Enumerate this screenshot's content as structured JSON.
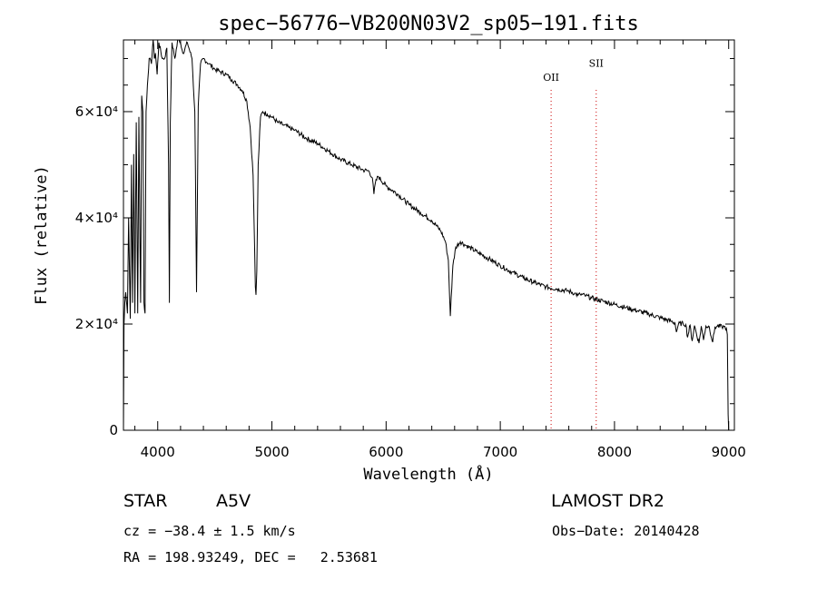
{
  "chart_data": {
    "type": "line",
    "title": "spec−56776−VB200N03V2_sp05−191.fits",
    "xlabel": "Wavelength (Å)",
    "ylabel": "Flux (relative)",
    "xlim": [
      3700,
      9050
    ],
    "ylim": [
      0,
      73500
    ],
    "x_ticks": [
      4000,
      5000,
      6000,
      7000,
      8000,
      9000
    ],
    "y_ticks": [
      {
        "value": 0,
        "label": "0"
      },
      {
        "value": 20000,
        "label": "2×10⁴"
      },
      {
        "value": 40000,
        "label": "4×10⁴"
      },
      {
        "value": 60000,
        "label": "6×10⁴"
      }
    ],
    "series": [
      {
        "x": [
          3700,
          3705,
          3712,
          3720,
          3735,
          3745,
          3760,
          3770,
          3780,
          3790,
          3800,
          3812,
          3825,
          3835,
          3850,
          3860,
          3870,
          3880,
          3889,
          3898,
          3910,
          3925,
          3945,
          3960,
          3970,
          3980,
          3995,
          4010,
          4040,
          4060,
          4080,
          4095,
          4102,
          4110,
          4125,
          4150,
          4180,
          4200,
          4220,
          4260,
          4300,
          4325,
          4340,
          4355,
          4375,
          4400,
          4450,
          4500,
          4550,
          4600,
          4650,
          4700,
          4740,
          4780,
          4810,
          4835,
          4848,
          4855,
          4861,
          4868,
          4880,
          4900,
          4920,
          4960,
          5000,
          5050,
          5100,
          5150,
          5200,
          5300,
          5400,
          5500,
          5600,
          5700,
          5800,
          5850,
          5880,
          5893,
          5905,
          5930,
          6000,
          6100,
          6200,
          6300,
          6400,
          6480,
          6520,
          6545,
          6556,
          6563,
          6570,
          6585,
          6610,
          6650,
          6700,
          6800,
          6900,
          7000,
          7100,
          7200,
          7300,
          7400,
          7500,
          7600,
          7650,
          7680,
          7700,
          7750,
          7800,
          7900,
          8000,
          8100,
          8200,
          8300,
          8400,
          8500,
          8530,
          8542,
          8560,
          8600,
          8625,
          8640,
          8662,
          8680,
          8700,
          8740,
          8760,
          8780,
          8800,
          8830,
          8860,
          8880,
          8900,
          8940,
          8960,
          8980,
          8988,
          8995,
          9000
        ],
        "y": [
          0,
          20000,
          24000,
          26000,
          22000,
          40000,
          21000,
          50000,
          24000,
          52000,
          22000,
          58000,
          22000,
          59000,
          24000,
          63000,
          60000,
          24000,
          22000,
          60000,
          65000,
          70000,
          69000,
          74000,
          70000,
          71000,
          67000,
          73000,
          70000,
          70000,
          72000,
          50000,
          24000,
          58000,
          73000,
          70000,
          74000,
          73000,
          71000,
          73000,
          70000,
          60000,
          26000,
          61000,
          69000,
          70000,
          69000,
          68000,
          67500,
          67000,
          66000,
          65000,
          64000,
          62000,
          57000,
          48000,
          35000,
          27000,
          25500,
          30000,
          50000,
          59000,
          60000,
          59500,
          59000,
          58000,
          57500,
          57000,
          56500,
          55000,
          54000,
          52500,
          51000,
          50000,
          49000,
          48800,
          47500,
          44500,
          46500,
          47800,
          46000,
          44500,
          42500,
          41000,
          39500,
          37500,
          35500,
          32000,
          25000,
          21500,
          25000,
          31000,
          34500,
          35500,
          34800,
          33500,
          32300,
          31000,
          29800,
          28700,
          27800,
          27000,
          26600,
          26200,
          25800,
          25400,
          25600,
          25300,
          24900,
          24300,
          23700,
          23100,
          22500,
          21900,
          21200,
          20500,
          20200,
          18500,
          20000,
          20100,
          19900,
          17500,
          19800,
          16800,
          19700,
          16400,
          19600,
          17000,
          19600,
          19500,
          16600,
          19400,
          19600,
          19500,
          19500,
          19200,
          18000,
          3000,
          0
        ]
      }
    ],
    "vlines": [
      {
        "x": 7445,
        "label": "OII",
        "label_y": 65800
      },
      {
        "x": 7840,
        "label": "SII",
        "label_y": 68500
      }
    ]
  },
  "info": {
    "object_type": "STAR",
    "spectral_class": "A5V",
    "survey": "LAMOST DR2",
    "cz": "cz = −38.4 ± 1.5 km/s",
    "obs_date": "Obs−Date: 20140428",
    "radec": "RA = 198.93249, DEC =   2.53681"
  }
}
